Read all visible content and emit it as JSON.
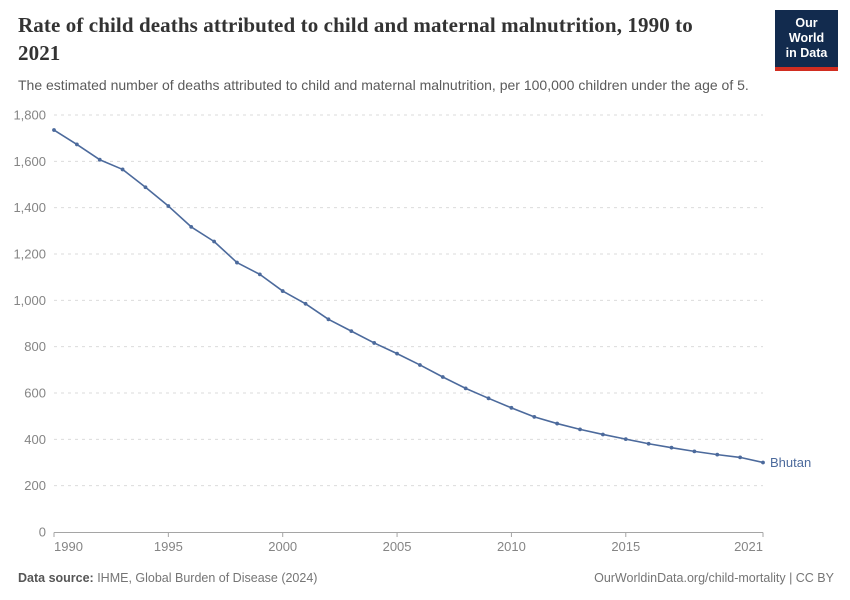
{
  "header": {
    "title": "Rate of child deaths attributed to child and maternal malnutrition, 1990 to 2021",
    "subtitle": "The estimated number of deaths attributed to child and maternal malnutrition, per 100,000 children under the age of 5."
  },
  "logo": {
    "line1": "Our World",
    "line2": "in Data"
  },
  "chart_data": {
    "type": "line",
    "title": "Rate of child deaths attributed to child and maternal malnutrition, 1990 to 2021",
    "xlabel": "",
    "ylabel": "",
    "xlim": [
      1990,
      2021
    ],
    "ylim": [
      0,
      1800
    ],
    "grid": "horizontal-dashed",
    "legend_position": "end-of-line-label",
    "x": [
      1990,
      1991,
      1992,
      1993,
      1994,
      1995,
      1996,
      1997,
      1998,
      1999,
      2000,
      2001,
      2002,
      2003,
      2004,
      2005,
      2006,
      2007,
      2008,
      2009,
      2010,
      2011,
      2012,
      2013,
      2014,
      2015,
      2016,
      2017,
      2018,
      2019,
      2020,
      2021
    ],
    "series": [
      {
        "name": "Bhutan",
        "color": "#4C6A9C",
        "values": [
          1735,
          1673,
          1607,
          1565,
          1488,
          1407,
          1317,
          1254,
          1163,
          1112,
          1040,
          985,
          918,
          867,
          816,
          770,
          721,
          669,
          620,
          577,
          536,
          497,
          468,
          443,
          421,
          401,
          381,
          364,
          348,
          334,
          322,
          300
        ]
      }
    ],
    "y_ticks": [
      {
        "value": 0,
        "label": "0"
      },
      {
        "value": 200,
        "label": "200"
      },
      {
        "value": 400,
        "label": "400"
      },
      {
        "value": 600,
        "label": "600"
      },
      {
        "value": 800,
        "label": "800"
      },
      {
        "value": 1000,
        "label": "1,000"
      },
      {
        "value": 1200,
        "label": "1,200"
      },
      {
        "value": 1400,
        "label": "1,400"
      },
      {
        "value": 1600,
        "label": "1,600"
      },
      {
        "value": 1800,
        "label": "1,800"
      }
    ],
    "x_ticks": [
      {
        "value": 1990,
        "label": "1990"
      },
      {
        "value": 1995,
        "label": "1995"
      },
      {
        "value": 2000,
        "label": "2000"
      },
      {
        "value": 2005,
        "label": "2005"
      },
      {
        "value": 2010,
        "label": "2010"
      },
      {
        "value": 2015,
        "label": "2015"
      },
      {
        "value": 2021,
        "label": "2021"
      }
    ]
  },
  "colors": {
    "line": "#4C6A9C",
    "grid": "#DBDBDB",
    "axis": "#A5A5A5",
    "tick_label": "#858585",
    "title": "#333333",
    "subtitle": "#5B5B5B",
    "footer": "#757575",
    "logo_bg": "#122B4E",
    "logo_red": "#D12D20"
  },
  "footer": {
    "source_label": "Data source:",
    "source_text": " IHME, Global Burden of Disease (2024)",
    "right_text": "OurWorldinData.org/child-mortality | CC BY"
  }
}
